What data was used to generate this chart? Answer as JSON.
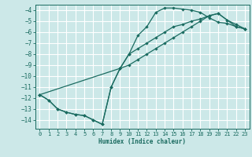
{
  "title": "",
  "xlabel": "Humidex (Indice chaleur)",
  "bg_color": "#cce8e8",
  "grid_color": "#ffffff",
  "line_color": "#1a6b60",
  "xlim": [
    -0.5,
    23.5
  ],
  "ylim": [
    -14.8,
    -3.5
  ],
  "yticks": [
    -14,
    -13,
    -12,
    -11,
    -10,
    -9,
    -8,
    -7,
    -6,
    -5,
    -4
  ],
  "xticks": [
    0,
    1,
    2,
    3,
    4,
    5,
    6,
    7,
    8,
    9,
    10,
    11,
    12,
    13,
    14,
    15,
    16,
    17,
    18,
    19,
    20,
    21,
    22,
    23
  ],
  "line1_x": [
    0,
    1,
    2,
    3,
    4,
    5,
    6,
    7,
    8,
    9,
    10,
    11,
    12,
    13,
    14,
    15,
    16,
    17,
    18,
    19,
    20,
    21,
    22,
    23
  ],
  "line1_y": [
    -11.7,
    -12.2,
    -13.0,
    -13.3,
    -13.5,
    -13.6,
    -14.0,
    -14.4,
    -11.0,
    -9.3,
    -8.0,
    -6.3,
    -5.5,
    -4.2,
    -3.8,
    -3.8,
    -3.9,
    -4.0,
    -4.2,
    -4.7,
    -5.1,
    -5.2,
    -5.5,
    -5.7
  ],
  "line2_x": [
    0,
    1,
    2,
    3,
    4,
    5,
    6,
    7,
    8,
    9,
    10,
    11,
    12,
    13,
    14,
    15,
    16,
    17,
    18,
    19,
    20,
    21,
    22,
    23
  ],
  "line2_y": [
    -11.7,
    -12.2,
    -13.0,
    -13.3,
    -13.5,
    -13.6,
    -14.0,
    -14.4,
    -11.0,
    -9.3,
    -9.0,
    -8.5,
    -8.0,
    -7.5,
    -7.0,
    -6.5,
    -6.0,
    -5.5,
    -5.0,
    -4.5,
    -4.3,
    -4.9,
    -5.3,
    -5.7
  ],
  "line3_x": [
    0,
    9,
    10,
    11,
    12,
    13,
    14,
    15,
    16,
    17,
    18,
    19,
    20,
    21,
    22,
    23
  ],
  "line3_y": [
    -11.7,
    -9.3,
    -8.0,
    -7.5,
    -7.0,
    -6.5,
    -6.0,
    -5.5,
    -5.3,
    -5.0,
    -4.8,
    -4.5,
    -4.3,
    -4.9,
    -5.5,
    -5.7
  ]
}
